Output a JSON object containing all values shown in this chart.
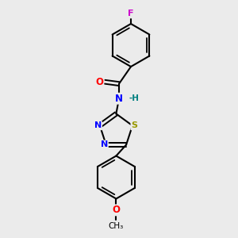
{
  "background_color": "#ebebeb",
  "bond_color": "#000000",
  "atom_colors": {
    "F": "#cc00cc",
    "O": "#ff0000",
    "N": "#0000ff",
    "S": "#999900",
    "H": "#008080",
    "C": "#000000"
  },
  "figsize": [
    3.0,
    3.0
  ],
  "dpi": 100
}
